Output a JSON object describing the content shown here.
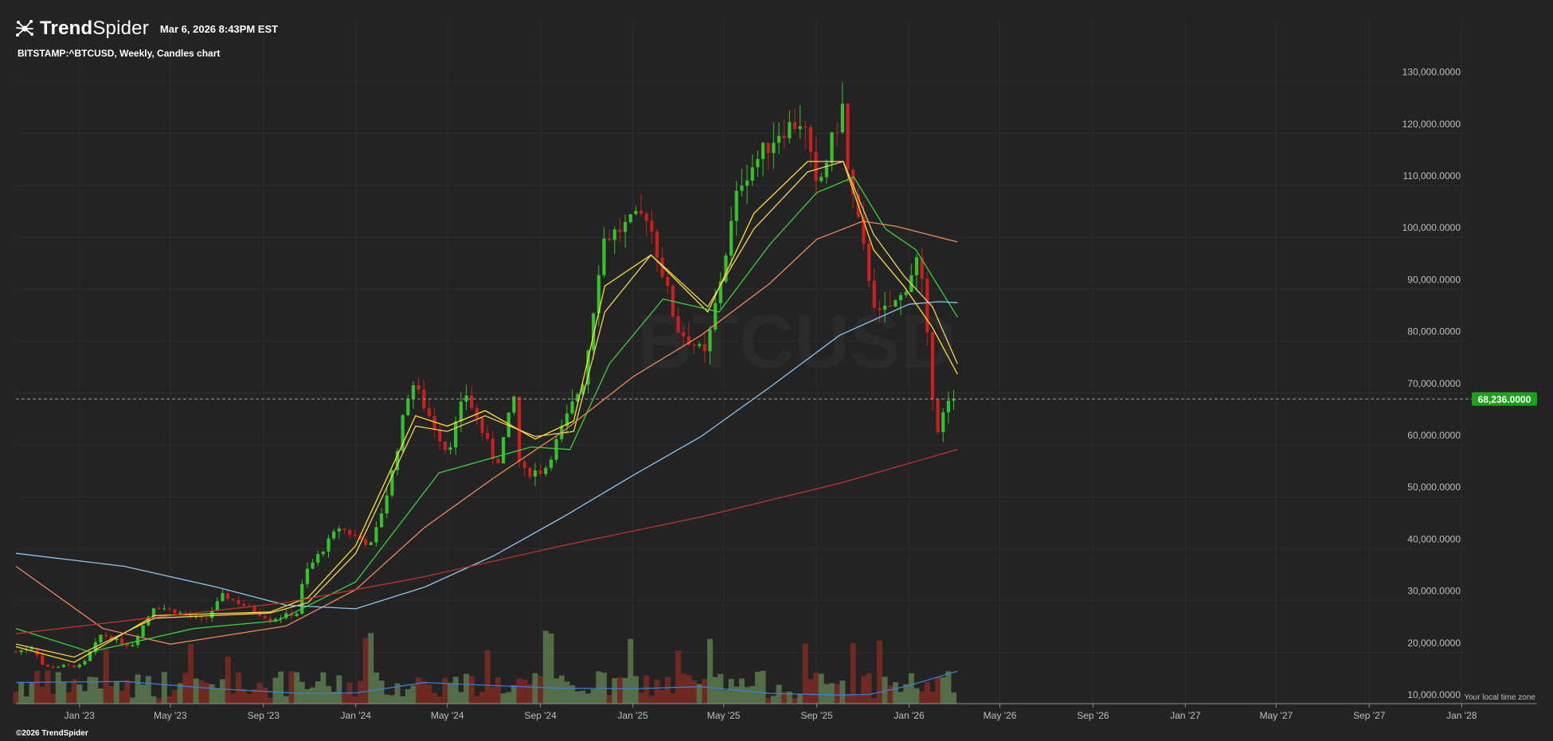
{
  "header": {
    "brand_bold": "Trend",
    "brand_light": "Spider",
    "datetime": "Mar 6, 2026 8:43PM EST"
  },
  "subtitle": "BITSTAMP:^BTCUSD, Weekly, Candles chart",
  "watermark": "BTCUSD",
  "footer": "©2026 TrendSpider",
  "timezone_note": "Your local time zone",
  "colors": {
    "background": "#232323",
    "grid": "#2e2e2e",
    "up": "#35c12b",
    "down": "#c8201f",
    "ema_fast": "#ffe21f",
    "ema_mid": "#f0d060",
    "ema_green": "#3ad03a",
    "ma_orange": "#ee8a5c",
    "ma_blue": "#8ac6f0",
    "ma_red": "#c03232",
    "vol_up": "#5a7a4e",
    "vol_down": "#7a2a22",
    "vol_ma": "#3a7fd5",
    "price_tag": "#1aa21a"
  },
  "chart_data": {
    "type": "candlestick",
    "title": "BITSTAMP:^BTCUSD, Weekly, Candles chart",
    "y_ticks": [
      "10,000.0000",
      "20,000.0000",
      "30,000.0000",
      "40,000.0000",
      "50,000.0000",
      "60,000.0000",
      "70,000.0000",
      "80,000.0000",
      "90,000.0000",
      "100,000.0000",
      "110,000.0000",
      "120,000.0000",
      "130,000.0000"
    ],
    "x_ticks": [
      "Jan '23",
      "May '23",
      "Sep '23",
      "Jan '24",
      "May '24",
      "Sep '24",
      "Jan '25",
      "May '25",
      "Sep '25",
      "Jan '26",
      "May '26",
      "Sep '26",
      "Jan '27",
      "May '27",
      "Sep '27",
      "Jan '28"
    ],
    "ylim": [
      6000,
      131000
    ],
    "last_price": 68236,
    "last_price_label": "68,236.0000",
    "price_path": [
      [
        "2022-10-09",
        19500
      ],
      [
        "2022-11-01",
        20500
      ],
      [
        "2022-11-15",
        16500
      ],
      [
        "2022-12-15",
        16800
      ],
      [
        "2023-01-05",
        16800
      ],
      [
        "2023-01-30",
        23000
      ],
      [
        "2023-03-10",
        20500
      ],
      [
        "2023-04-10",
        28500
      ],
      [
        "2023-06-15",
        25500
      ],
      [
        "2023-07-10",
        30500
      ],
      [
        "2023-09-10",
        25800
      ],
      [
        "2023-10-15",
        27000
      ],
      [
        "2023-10-25",
        34500
      ],
      [
        "2023-12-10",
        43500
      ],
      [
        "2024-01-22",
        40000
      ],
      [
        "2024-02-15",
        52000
      ],
      [
        "2024-03-14",
        72000
      ],
      [
        "2024-05-01",
        58000
      ],
      [
        "2024-05-25",
        69500
      ],
      [
        "2024-07-05",
        55500
      ],
      [
        "2024-07-29",
        69000
      ],
      [
        "2024-08-05",
        54000
      ],
      [
        "2024-09-06",
        54500
      ],
      [
        "2024-10-01",
        63000
      ],
      [
        "2024-10-29",
        72500
      ],
      [
        "2024-11-22",
        99000
      ],
      [
        "2025-01-20",
        104000
      ],
      [
        "2025-02-28",
        82000
      ],
      [
        "2025-04-07",
        76500
      ],
      [
        "2025-05-22",
        110000
      ],
      [
        "2025-07-14",
        120000
      ],
      [
        "2025-08-14",
        122000
      ],
      [
        "2025-09-01",
        108000
      ],
      [
        "2025-10-06",
        125000
      ],
      [
        "2025-10-12",
        112000
      ],
      [
        "2025-11-20",
        84000
      ],
      [
        "2025-12-20",
        87500
      ],
      [
        "2026-01-14",
        96000
      ],
      [
        "2026-02-06",
        62000
      ],
      [
        "2026-02-20",
        67000
      ],
      [
        "2026-03-06",
        68236
      ]
    ],
    "series": [
      {
        "name": "ema_fast",
        "x": [
          "2022-10-09",
          "2022-12-25",
          "2023-04-10",
          "2023-09-10",
          "2023-10-30",
          "2024-01-01",
          "2024-03-20",
          "2024-05-01",
          "2024-06-20",
          "2024-08-25",
          "2024-10-15",
          "2024-11-25",
          "2025-01-25",
          "2025-04-10",
          "2025-06-10",
          "2025-08-20",
          "2025-10-06",
          "2025-11-15",
          "2025-12-25",
          "2026-02-01",
          "2026-03-06"
        ],
        "values": [
          20500,
          17500,
          26500,
          27200,
          30000,
          40000,
          65000,
          63000,
          66000,
          60500,
          64000,
          90000,
          96000,
          85000,
          104000,
          114000,
          114000,
          97000,
          90000,
          82000,
          73000
        ]
      },
      {
        "name": "ema_mid",
        "x": [
          "2022-10-09",
          "2022-12-25",
          "2023-04-10",
          "2023-09-10",
          "2023-10-30",
          "2024-01-01",
          "2024-03-20",
          "2024-05-01",
          "2024-06-20",
          "2024-08-25",
          "2024-10-15",
          "2024-11-25",
          "2025-01-25",
          "2025-04-10",
          "2025-06-10",
          "2025-08-20",
          "2025-10-06",
          "2025-11-15",
          "2025-12-25",
          "2026-02-01",
          "2026-03-06"
        ],
        "values": [
          21000,
          18500,
          26000,
          27000,
          29000,
          38500,
          63000,
          62000,
          65000,
          61000,
          62000,
          85000,
          96000,
          86000,
          101000,
          112000,
          114000,
          100000,
          92000,
          86000,
          75000
        ]
      },
      {
        "name": "ema_green",
        "x": [
          "2022-10-09",
          "2023-01-15",
          "2023-06-01",
          "2023-09-20",
          "2024-01-01",
          "2024-04-20",
          "2024-08-20",
          "2024-10-10",
          "2024-12-01",
          "2025-02-10",
          "2025-04-25",
          "2025-07-01",
          "2025-09-01",
          "2025-10-20",
          "2025-12-01",
          "2026-01-10",
          "2026-03-06"
        ],
        "values": [
          24000,
          19500,
          24000,
          25500,
          33000,
          54000,
          59000,
          58500,
          75000,
          87500,
          85000,
          98000,
          108000,
          111000,
          101000,
          97000,
          84000
        ]
      },
      {
        "name": "ma_orange",
        "x": [
          "2022-10-09",
          "2023-02-01",
          "2023-05-01",
          "2023-10-01",
          "2024-01-01",
          "2024-04-01",
          "2024-07-01",
          "2024-10-01",
          "2025-01-01",
          "2025-04-01",
          "2025-07-01",
          "2025-09-01",
          "2025-11-01",
          "2025-12-15",
          "2026-03-06"
        ],
        "values": [
          36000,
          24000,
          21000,
          24500,
          31500,
          43500,
          53000,
          62000,
          72500,
          80500,
          90500,
          99000,
          102500,
          101500,
          98500
        ]
      },
      {
        "name": "ma_blue",
        "x": [
          "2022-10-09",
          "2023-03-01",
          "2023-07-01",
          "2023-10-01",
          "2024-01-01",
          "2024-04-01",
          "2024-07-01",
          "2024-10-01",
          "2025-01-01",
          "2025-04-01",
          "2025-07-01",
          "2025-10-01",
          "2026-01-01",
          "2026-02-10",
          "2026-03-06"
        ],
        "values": [
          38500,
          36000,
          32000,
          28500,
          27800,
          32000,
          38000,
          45500,
          53500,
          61000,
          70500,
          80500,
          86500,
          87000,
          86800
        ]
      },
      {
        "name": "ma_red",
        "x": [
          "2022-10-09",
          "2023-04-01",
          "2023-10-01",
          "2024-04-01",
          "2024-10-01",
          "2025-04-01",
          "2025-10-01",
          "2026-03-06"
        ],
        "values": [
          23000,
          26000,
          29000,
          34000,
          40000,
          45500,
          52000,
          58500
        ]
      },
      {
        "name": "vol_ma",
        "x": [
          "2022-10-09",
          "2023-03-01",
          "2023-07-01",
          "2023-10-20",
          "2024-01-01",
          "2024-04-01",
          "2024-07-01",
          "2024-10-01",
          "2025-01-01",
          "2025-04-01",
          "2025-07-01",
          "2025-10-01",
          "2025-11-10",
          "2026-01-01",
          "2026-03-06"
        ],
        "values": [
          13600,
          13800,
          12400,
          11500,
          11600,
          13600,
          13000,
          12500,
          12400,
          12800,
          11500,
          11200,
          11300,
          13000,
          15800
        ]
      }
    ]
  }
}
